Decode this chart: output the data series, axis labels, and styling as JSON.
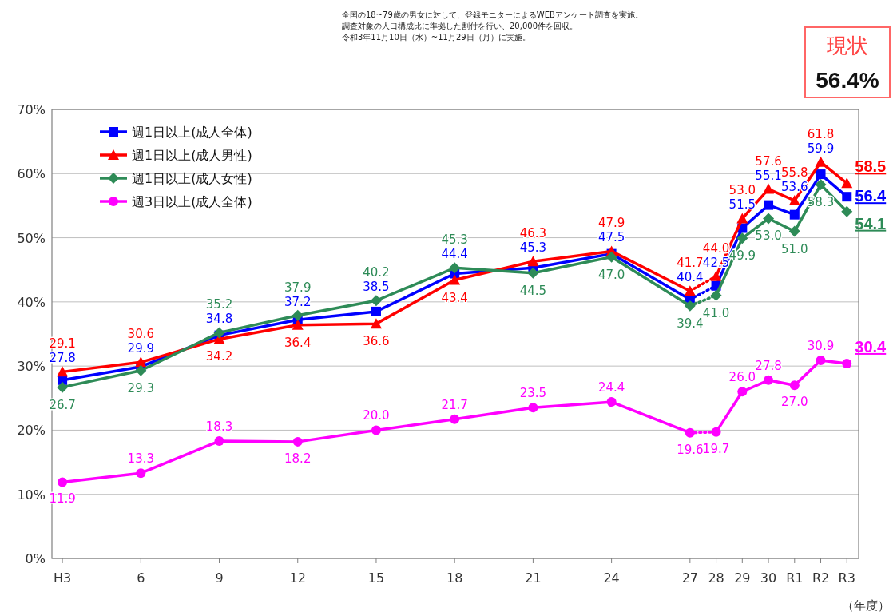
{
  "chart_data": {
    "type": "line",
    "annotations": [
      "全国の18~79歳の男女に対して、登録モニターによるWEBアンケート調査を実施。",
      "調査対象の人口構成比に準拠した割付を行い、20,000件を回収。",
      "令和3年11月10日（水）~11月29日（月）に実施。",
      "現状",
      "56.4%"
    ],
    "xlabel": "（年度）",
    "xlim": [
      2.6,
      33.45
    ],
    "xticks": [
      {
        "value": 3,
        "label": "H3"
      },
      6,
      9,
      12,
      15,
      18,
      21,
      24,
      27,
      28,
      29,
      30,
      {
        "value": 31,
        "label": "R1"
      },
      {
        "value": 32,
        "label": "R2"
      },
      {
        "value": 33,
        "label": "R3"
      }
    ],
    "ylim": [
      0,
      70
    ],
    "yticks": [
      {
        "value": 0,
        "label": "0%"
      },
      {
        "value": 10,
        "label": "10%"
      },
      {
        "value": 20,
        "label": "20%"
      },
      {
        "value": 30,
        "label": "30%"
      },
      {
        "value": 40,
        "label": "40%"
      },
      {
        "value": 50,
        "label": "50%"
      },
      {
        "value": 60,
        "label": "60%"
      },
      {
        "value": 70,
        "label": "70%"
      }
    ],
    "grid": "y",
    "legend": "top left",
    "series": [
      {
        "name": "週1日以上(成人全体)",
        "color": "#0000ff",
        "marker": "square",
        "x": [
          3,
          6,
          9,
          12,
          15,
          18,
          21,
          24,
          27
        ],
        "values": [
          27.8,
          29.9,
          34.8,
          37.2,
          38.5,
          44.4,
          45.3,
          47.5,
          40.4
        ],
        "value_labels": [
          "27.8",
          "29.9",
          "34.8",
          "37.2",
          "38.5",
          "44.4",
          "45.3",
          "47.5",
          "40.4"
        ]
      },
      {
        "name": "週1日以上(成人男性)",
        "color": "#ff0000",
        "marker": "triangle",
        "x": [
          3,
          6,
          9,
          12,
          15,
          18,
          21,
          24,
          27
        ],
        "values": [
          29.1,
          30.6,
          34.2,
          36.4,
          36.6,
          43.4,
          46.3,
          47.9,
          41.7
        ],
        "value_labels": [
          "29.1",
          "30.6",
          "34.2",
          "36.4",
          "36.6",
          "43.4",
          "46.3",
          "47.9",
          "41.7"
        ]
      },
      {
        "name": "週1日以上(成人女性)",
        "color": "#2e8b57",
        "marker": "diamond",
        "x": [
          3,
          6,
          9,
          12,
          15,
          18,
          21,
          24,
          27
        ],
        "values": [
          26.7,
          29.3,
          35.2,
          37.9,
          40.2,
          45.3,
          44.5,
          47.0,
          39.4
        ],
        "value_labels": [
          "26.7",
          "29.3",
          "35.2",
          "37.9",
          "40.2",
          "45.3",
          "44.5",
          "47.0",
          "39.4"
        ]
      },
      {
        "name": "週3日以上(成人全体)",
        "color": "#ff00ff",
        "marker": "circle",
        "x": [
          3,
          6,
          9,
          12,
          15,
          18,
          21,
          24,
          27
        ],
        "values": [
          11.9,
          13.3,
          18.3,
          18.2,
          20.0,
          21.7,
          23.5,
          24.4,
          19.6
        ],
        "value_labels": [
          "11.9",
          "13.3",
          "18.3",
          "18.2",
          "20.0",
          "21.7",
          "23.5",
          "24.4",
          "19.6"
        ]
      },
      {
        "color": "#0000ff",
        "line_style": "dotted",
        "x": [
          27,
          28
        ],
        "values": [
          40.4,
          42.5
        ]
      },
      {
        "color": "#ff0000",
        "line_style": "dotted",
        "x": [
          27,
          28
        ],
        "values": [
          41.7,
          44.0
        ]
      },
      {
        "color": "#2e8b57",
        "line_style": "dotted",
        "x": [
          27,
          28
        ],
        "values": [
          39.4,
          41.0
        ]
      },
      {
        "color": "#ff00ff",
        "line_style": "dotted",
        "x": [
          27,
          28
        ],
        "values": [
          19.6,
          19.7
        ]
      },
      {
        "color": "#0000ff",
        "marker": "square",
        "x": [
          28,
          29,
          30,
          31,
          32,
          33
        ],
        "values": [
          42.5,
          51.5,
          55.1,
          53.6,
          59.9,
          56.4
        ],
        "value_labels": [
          "42.5",
          "51.5",
          "55.1",
          "53.6",
          "59.9",
          "56.4"
        ]
      },
      {
        "color": "#ff0000",
        "marker": "triangle",
        "x": [
          28,
          29,
          30,
          31,
          32,
          33
        ],
        "values": [
          44.0,
          53.0,
          57.6,
          55.8,
          61.8,
          58.5
        ],
        "value_labels": [
          "44.0",
          "53.0",
          "57.6",
          "55.8",
          "61.8",
          "58.5"
        ]
      },
      {
        "color": "#2e8b57",
        "marker": "diamond",
        "x": [
          28,
          29,
          30,
          31,
          32,
          33
        ],
        "values": [
          41.0,
          49.9,
          53.0,
          51.0,
          58.3,
          54.1
        ],
        "value_labels": [
          "41.0",
          "49.9",
          "53.0",
          "51.0",
          "58.3",
          "54.1"
        ]
      },
      {
        "color": "#ff00ff",
        "marker": "circle",
        "x": [
          28,
          29,
          30,
          31,
          32,
          33
        ],
        "values": [
          19.7,
          26.0,
          27.8,
          27.0,
          30.9,
          30.4
        ],
        "value_labels": [
          "19.7",
          "26.0",
          "27.8",
          "27.0",
          "30.9",
          "30.4"
        ]
      }
    ]
  }
}
